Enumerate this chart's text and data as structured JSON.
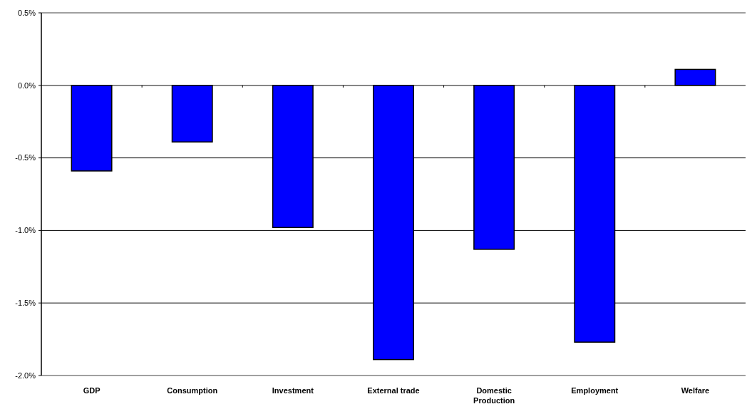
{
  "chart_data": {
    "type": "bar",
    "categories": [
      "GDP",
      "Consumption",
      "Investment",
      "External trade",
      "Domestic Production",
      "Employment",
      "Welfare"
    ],
    "values": [
      -0.59,
      -0.39,
      -0.98,
      -1.89,
      -1.13,
      -1.77,
      0.11
    ],
    "color": "#0000ff",
    "ylim": [
      -2.0,
      0.5
    ],
    "yticks": [
      {
        "value": 0.5,
        "label": "0.5%"
      },
      {
        "value": 0,
        "label": "0.0%"
      },
      {
        "value": -0.5,
        "label": "-0.5%"
      },
      {
        "value": -1.0,
        "label": "-1.0%"
      },
      {
        "value": -1.5,
        "label": "-1.5%"
      },
      {
        "value": -2.0,
        "label": "-2.0%"
      }
    ],
    "grid": "y"
  }
}
